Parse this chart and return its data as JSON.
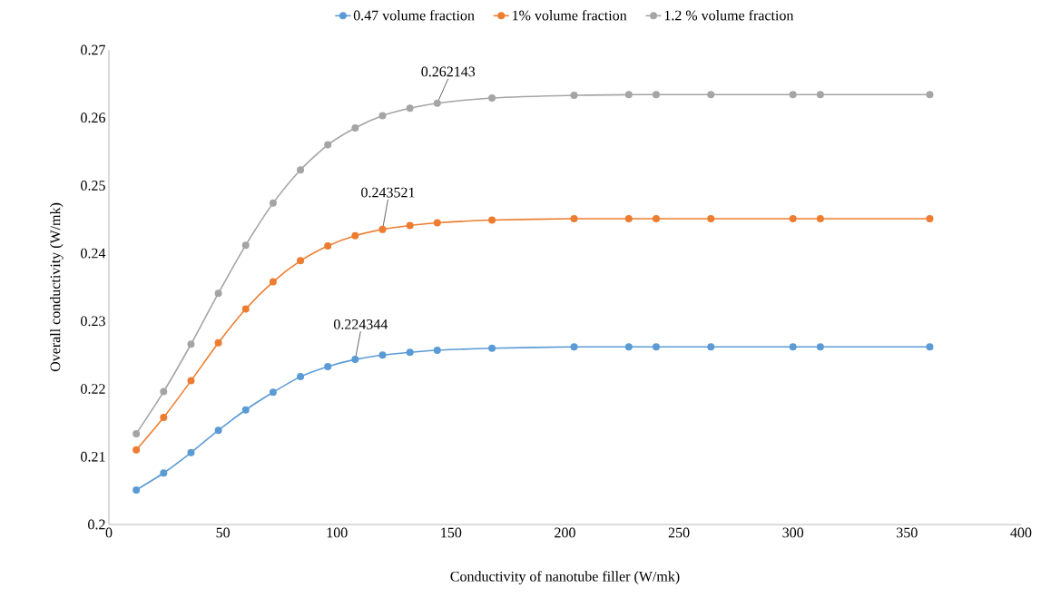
{
  "chart_data": {
    "type": "line",
    "xlabel": "Conductivity of nanotube filler (W/mk)",
    "ylabel": "Overall conductivity (W/mk)",
    "x": [
      12,
      24,
      36,
      48,
      60,
      72,
      84,
      96,
      108,
      120,
      132,
      144,
      168,
      204,
      228,
      240,
      264,
      300,
      312,
      360
    ],
    "series": [
      {
        "name": "0.47 volume fraction",
        "color": "#5b9bd5",
        "values": [
          0.2051,
          0.2076,
          0.2106,
          0.2139,
          0.2169,
          0.2195,
          0.2218,
          0.2233,
          0.224344,
          0.225,
          0.2254,
          0.2257,
          0.226,
          0.2262,
          0.2262,
          0.2262,
          0.2262,
          0.2262,
          0.2262,
          0.2262
        ]
      },
      {
        "name": "1% volume fraction",
        "color": "#ed7d31",
        "values": [
          0.211,
          0.2158,
          0.2212,
          0.2268,
          0.2318,
          0.2358,
          0.2389,
          0.2411,
          0.2426,
          0.243521,
          0.2441,
          0.2445,
          0.2449,
          0.2451,
          0.2451,
          0.2451,
          0.2451,
          0.2451,
          0.2451,
          0.2451
        ]
      },
      {
        "name": "1.2 % volume fraction",
        "color": "#a5a5a5",
        "values": [
          0.2134,
          0.2196,
          0.2266,
          0.2341,
          0.2412,
          0.2474,
          0.2523,
          0.256,
          0.2585,
          0.2603,
          0.2614,
          0.262143,
          0.2629,
          0.2633,
          0.2634,
          0.2634,
          0.2634,
          0.2634,
          0.2634,
          0.2634
        ]
      }
    ],
    "annotations": [
      {
        "text": "0.224344",
        "x": 108,
        "y": 0.224344
      },
      {
        "text": "0.243521",
        "x": 120,
        "y": 0.243521
      },
      {
        "text": "0.262143",
        "x": 144,
        "y": 0.262143
      }
    ],
    "xlim": [
      0,
      400
    ],
    "xticks": [
      0,
      50,
      100,
      150,
      200,
      250,
      300,
      350,
      400
    ],
    "ylim": [
      0.2,
      0.27
    ],
    "yticks": [
      0.2,
      0.21,
      0.22,
      0.23,
      0.24,
      0.25,
      0.26,
      0.27
    ],
    "legend": "top",
    "marker": "circle",
    "line_style": "solid",
    "grid": false
  }
}
